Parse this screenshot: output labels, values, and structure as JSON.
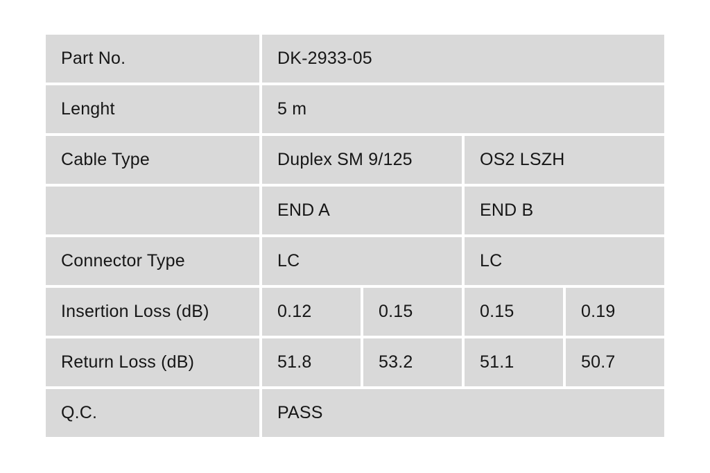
{
  "colors": {
    "page_bg": "#ffffff",
    "cell_bg": "#d9d9d9",
    "text_color": "#161616"
  },
  "table": {
    "rows": [
      {
        "label": "Part No.",
        "cells": [
          {
            "text": "DK-2933-05",
            "span": 4
          }
        ]
      },
      {
        "label": "Lenght",
        "cells": [
          {
            "text": "5 m",
            "span": 4
          }
        ]
      },
      {
        "label": "Cable Type",
        "cells": [
          {
            "text": "Duplex SM 9/125",
            "span": 2
          },
          {
            "text": "OS2 LSZH",
            "span": 2
          }
        ]
      },
      {
        "label": "",
        "cells": [
          {
            "text": "END A",
            "span": 2
          },
          {
            "text": "END B",
            "span": 2
          }
        ]
      },
      {
        "label": "Connector Type",
        "cells": [
          {
            "text": "LC",
            "span": 2
          },
          {
            "text": "LC",
            "span": 2
          }
        ]
      },
      {
        "label": "Insertion Loss (dB)",
        "cells": [
          {
            "text": "0.12"
          },
          {
            "text": "0.15"
          },
          {
            "text": "0.15"
          },
          {
            "text": "0.19"
          }
        ]
      },
      {
        "label": "Return Loss (dB)",
        "cells": [
          {
            "text": "51.8"
          },
          {
            "text": "53.2"
          },
          {
            "text": "51.1"
          },
          {
            "text": "50.7"
          }
        ]
      },
      {
        "label": "Q.C.",
        "cells": [
          {
            "text": "PASS",
            "span": 4
          }
        ]
      }
    ]
  }
}
